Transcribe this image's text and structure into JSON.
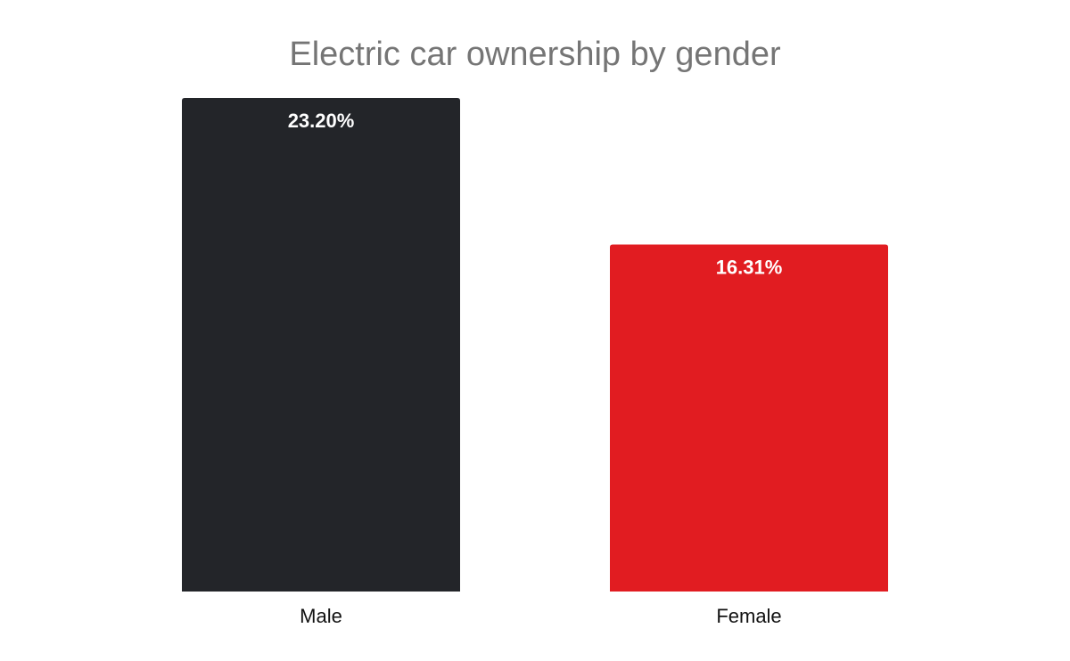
{
  "chart_data": {
    "type": "bar",
    "title": "Electric car ownership by gender",
    "categories": [
      "Male",
      "Female"
    ],
    "values": [
      23.2,
      16.31
    ],
    "value_labels": [
      "23.20%",
      "16.31%"
    ],
    "colors": [
      "#232529",
      "#e11c21"
    ],
    "ylim": [
      0,
      23.2
    ],
    "grid": false,
    "legend": "none"
  }
}
